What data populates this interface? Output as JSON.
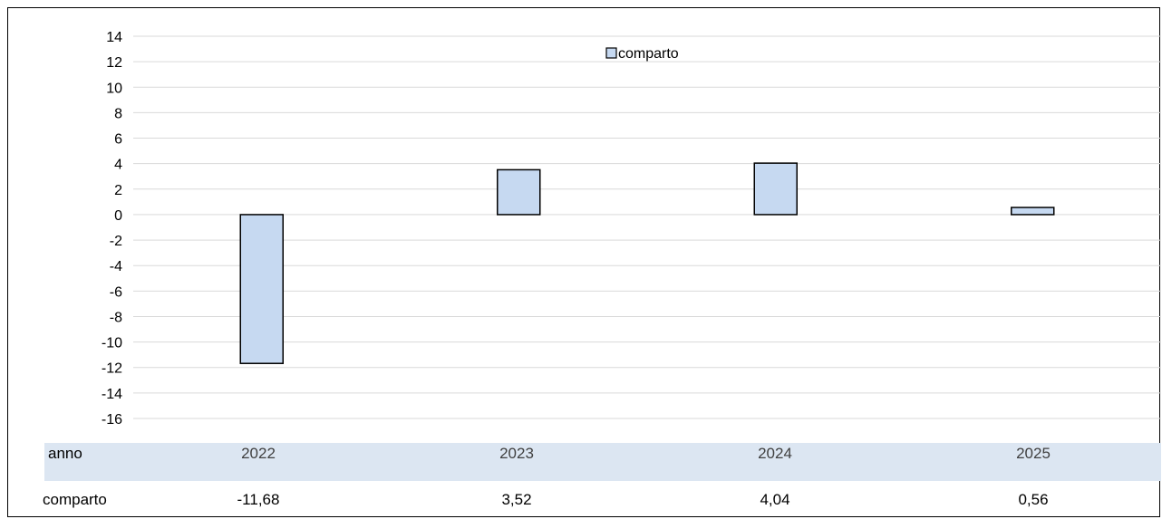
{
  "chart_data": {
    "type": "bar",
    "categories": [
      "2022",
      "2023",
      "2024",
      "2025"
    ],
    "series": [
      {
        "name": "comparto",
        "values": [
          -11.68,
          3.52,
          4.04,
          0.56
        ]
      }
    ],
    "ylim": [
      -16,
      14
    ],
    "yticks": [
      "14",
      "12",
      "10",
      "8",
      "6",
      "4",
      "2",
      "0",
      "-2",
      "-4",
      "-6",
      "-8",
      "-10",
      "-12",
      "-14",
      "-16"
    ],
    "grid": true,
    "legend": "top-center",
    "colors": {
      "bar_fill": "#c6d9f1",
      "bar_stroke": "#000000",
      "band": "#dce6f2",
      "grid": "#d9d9d9"
    }
  },
  "table": {
    "header_label": "anno",
    "row_label": "comparto",
    "years": [
      "2022",
      "2023",
      "2024",
      "2025"
    ],
    "values": [
      "-11,68",
      "3,52",
      "4,04",
      "0,56"
    ]
  }
}
